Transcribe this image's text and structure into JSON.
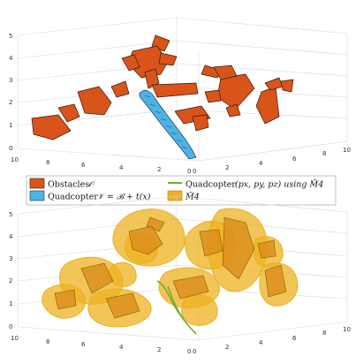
{
  "legend": {
    "obstacles_label": "Obstacles",
    "obstacles_math": "𝒪",
    "quad_body_label": "Quadcopter",
    "quad_body_math": "𝒱 = ℬ + t(x)",
    "quad_traj_label": "Quadcopter",
    "quad_traj_math": "(p",
    "quad_traj_math_full": "(px, py, pz) using M̃4",
    "m4_label": "M̃4",
    "colors": {
      "obstacle_fill": "#d9541a",
      "obstacle_edge": "#3a1a0a",
      "quad_fill": "#4db3e6",
      "trajectory": "#77ac30",
      "manifold": "#edb120"
    }
  },
  "chart_data": [
    {
      "type": "3d-scatter",
      "panel": "top",
      "x_ticks": [
        "10",
        "8",
        "6",
        "4",
        "2",
        "0"
      ],
      "y_ticks": [
        "0",
        "2",
        "4",
        "6",
        "8",
        "10"
      ],
      "z_ticks": [
        "0",
        "1",
        "2",
        "3",
        "4",
        "5"
      ],
      "zlim": [
        0,
        5
      ],
      "series": [
        {
          "name": "Obstacles 𝒪",
          "kind": "polyhedra"
        },
        {
          "name": "Quadcopter 𝒱 = ℬ + t(x)",
          "kind": "swept-volume"
        }
      ],
      "grid": true
    },
    {
      "type": "3d-scatter",
      "panel": "bottom",
      "x_ticks": [
        "10",
        "8",
        "6",
        "4",
        "2",
        "0"
      ],
      "y_ticks": [
        "0",
        "2",
        "4",
        "6",
        "8",
        "10"
      ],
      "z_ticks": [
        "0",
        "1",
        "2",
        "3",
        "4",
        "5"
      ],
      "zlim": [
        0,
        5
      ],
      "series": [
        {
          "name": "M̃4",
          "kind": "inflated-regions"
        },
        {
          "name": "Quadcopter (px, py, pz) using M̃4",
          "kind": "line"
        }
      ],
      "grid": true
    }
  ]
}
